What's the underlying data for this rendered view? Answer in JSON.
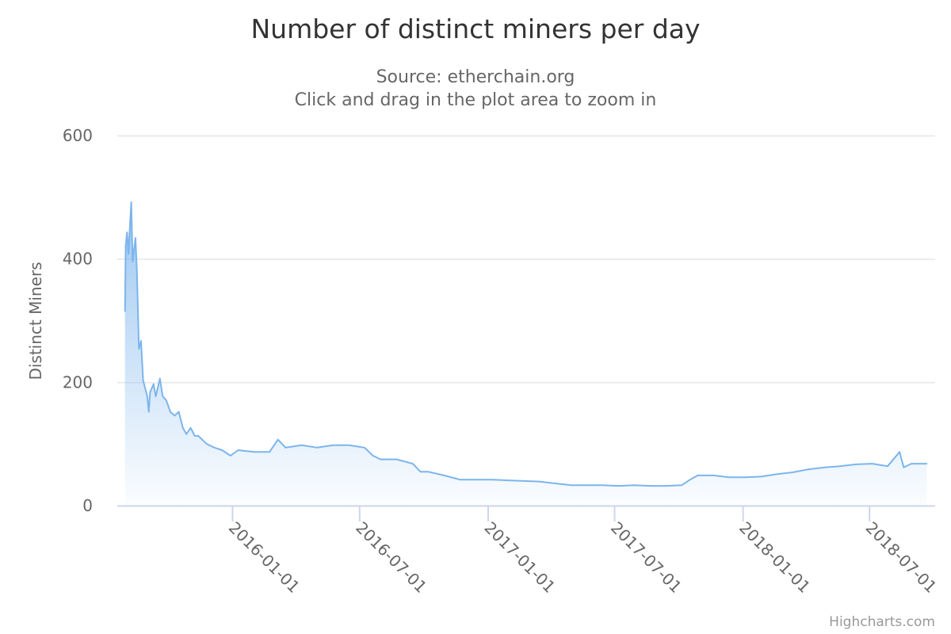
{
  "chart_data": {
    "type": "area",
    "title": "Number of distinct miners per day",
    "subtitle_lines": [
      "Source: etherchain.org",
      "Click and drag in the plot area to zoom in"
    ],
    "xlabel": "",
    "ylabel": "Distinct Miners",
    "xlim": [
      "2015-07-20",
      "2018-10-03"
    ],
    "ylim": [
      0,
      600
    ],
    "yticks": [
      "0",
      "200",
      "400",
      "600"
    ],
    "xticks": [
      "2016-01-01",
      "2016-07-01",
      "2017-01-01",
      "2017-07-01",
      "2018-01-01",
      "2018-07-01"
    ],
    "grid": true,
    "legend": false,
    "color": "#7cb5ec",
    "credit": "Highcharts.com",
    "points": [
      [
        "2015-07-31",
        315
      ],
      [
        "2015-08-01",
        421
      ],
      [
        "2015-08-03",
        443
      ],
      [
        "2015-08-05",
        408
      ],
      [
        "2015-08-09",
        492
      ],
      [
        "2015-08-11",
        396
      ],
      [
        "2015-08-15",
        434
      ],
      [
        "2015-08-17",
        383
      ],
      [
        "2015-08-20",
        254
      ],
      [
        "2015-08-23",
        267
      ],
      [
        "2015-08-26",
        203
      ],
      [
        "2015-09-01",
        177
      ],
      [
        "2015-09-03",
        152
      ],
      [
        "2015-09-05",
        184
      ],
      [
        "2015-09-10",
        197
      ],
      [
        "2015-09-13",
        177
      ],
      [
        "2015-09-19",
        206
      ],
      [
        "2015-09-23",
        177
      ],
      [
        "2015-09-28",
        171
      ],
      [
        "2015-10-04",
        152
      ],
      [
        "2015-10-10",
        146
      ],
      [
        "2015-10-16",
        152
      ],
      [
        "2015-10-22",
        126
      ],
      [
        "2015-10-27",
        116
      ],
      [
        "2015-11-02",
        126
      ],
      [
        "2015-11-08",
        113
      ],
      [
        "2015-11-13",
        113
      ],
      [
        "2015-11-25",
        100
      ],
      [
        "2015-12-06",
        94
      ],
      [
        "2015-12-17",
        90
      ],
      [
        "2015-12-29",
        81
      ],
      [
        "2016-01-09",
        90
      ],
      [
        "2016-02-01",
        87
      ],
      [
        "2016-02-23",
        87
      ],
      [
        "2016-03-06",
        107
      ],
      [
        "2016-03-17",
        94
      ],
      [
        "2016-04-09",
        98
      ],
      [
        "2016-05-01",
        94
      ],
      [
        "2016-05-24",
        98
      ],
      [
        "2016-06-16",
        98
      ],
      [
        "2016-07-08",
        94
      ],
      [
        "2016-07-20",
        81
      ],
      [
        "2016-07-31",
        75
      ],
      [
        "2016-08-23",
        75
      ],
      [
        "2016-09-15",
        68
      ],
      [
        "2016-09-26",
        55
      ],
      [
        "2016-10-07",
        55
      ],
      [
        "2016-10-30",
        49
      ],
      [
        "2016-11-22",
        42
      ],
      [
        "2016-12-14",
        42
      ],
      [
        "2017-01-06",
        42
      ],
      [
        "2017-01-29",
        41
      ],
      [
        "2017-02-20",
        40
      ],
      [
        "2017-03-15",
        39
      ],
      [
        "2017-04-07",
        36
      ],
      [
        "2017-04-30",
        33
      ],
      [
        "2017-05-22",
        33
      ],
      [
        "2017-06-14",
        33
      ],
      [
        "2017-07-07",
        32
      ],
      [
        "2017-07-29",
        33
      ],
      [
        "2017-08-21",
        32
      ],
      [
        "2017-09-13",
        32
      ],
      [
        "2017-10-05",
        33
      ],
      [
        "2017-10-17",
        42
      ],
      [
        "2017-10-28",
        49
      ],
      [
        "2017-11-20",
        49
      ],
      [
        "2017-12-12",
        46
      ],
      [
        "2018-01-04",
        46
      ],
      [
        "2018-01-27",
        47
      ],
      [
        "2018-02-19",
        51
      ],
      [
        "2018-03-13",
        54
      ],
      [
        "2018-04-05",
        59
      ],
      [
        "2018-04-28",
        62
      ],
      [
        "2018-05-20",
        64
      ],
      [
        "2018-06-12",
        67
      ],
      [
        "2018-07-05",
        68
      ],
      [
        "2018-07-27",
        64
      ],
      [
        "2018-08-13",
        87
      ],
      [
        "2018-08-19",
        62
      ],
      [
        "2018-08-30",
        68
      ],
      [
        "2018-09-21",
        68
      ]
    ]
  }
}
